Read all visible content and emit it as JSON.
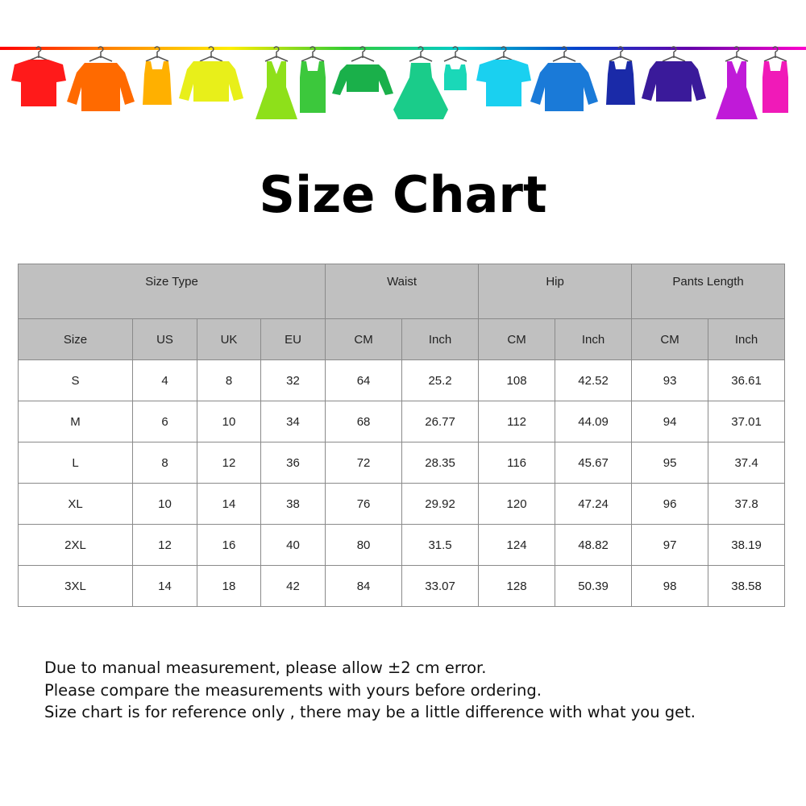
{
  "banner": {
    "icon": "clothes-on-hangers-rail",
    "rail_colors": [
      "#ff0000",
      "#ff8800",
      "#ffee00",
      "#33cc33",
      "#00cccc",
      "#0044cc",
      "#6600aa",
      "#ff00cc"
    ],
    "garments": [
      {
        "type": "tshirt",
        "color": "#ff1a1a"
      },
      {
        "type": "shirt",
        "color": "#ff6a00"
      },
      {
        "type": "tank",
        "color": "#ffb000"
      },
      {
        "type": "cardigan",
        "color": "#e8ef1a"
      },
      {
        "type": "dress",
        "color": "#8ee01a"
      },
      {
        "type": "tank-belt",
        "color": "#3cc83c"
      },
      {
        "type": "sweater",
        "color": "#1ab04a"
      },
      {
        "type": "dress-big",
        "color": "#1acc8a"
      },
      {
        "type": "tank-small",
        "color": "#1ad8b8"
      },
      {
        "type": "tshirt",
        "color": "#1ad0f0"
      },
      {
        "type": "shirt",
        "color": "#1a7ad8"
      },
      {
        "type": "tank",
        "color": "#1a2aa8"
      },
      {
        "type": "cardigan",
        "color": "#3a1a9a"
      },
      {
        "type": "dress",
        "color": "#c01ad8"
      },
      {
        "type": "tank-belt",
        "color": "#f01ab8"
      }
    ]
  },
  "title": "Size Chart",
  "table": {
    "group_headers": [
      "Size Type",
      "Waist",
      "Hip",
      "Pants Length"
    ],
    "sub_headers": [
      "Size",
      "US",
      "UK",
      "EU",
      "CM",
      "Inch",
      "CM",
      "Inch",
      "CM",
      "Inch"
    ],
    "rows": [
      [
        "S",
        "4",
        "8",
        "32",
        "64",
        "25.2",
        "108",
        "42.52",
        "93",
        "36.61"
      ],
      [
        "M",
        "6",
        "10",
        "34",
        "68",
        "26.77",
        "112",
        "44.09",
        "94",
        "37.01"
      ],
      [
        "L",
        "8",
        "12",
        "36",
        "72",
        "28.35",
        "116",
        "45.67",
        "95",
        "37.4"
      ],
      [
        "XL",
        "10",
        "14",
        "38",
        "76",
        "29.92",
        "120",
        "47.24",
        "96",
        "37.8"
      ],
      [
        "2XL",
        "12",
        "16",
        "40",
        "80",
        "31.5",
        "124",
        "48.82",
        "97",
        "38.19"
      ],
      [
        "3XL",
        "14",
        "18",
        "42",
        "84",
        "33.07",
        "128",
        "50.39",
        "98",
        "38.58"
      ]
    ],
    "header_bg": "#c0c0c0"
  },
  "notes": [
    "Due to manual measurement, please allow ±2 cm error.",
    "Please compare the measurements with yours before ordering.",
    "Size chart is for reference only , there may be a little difference with what you get."
  ]
}
